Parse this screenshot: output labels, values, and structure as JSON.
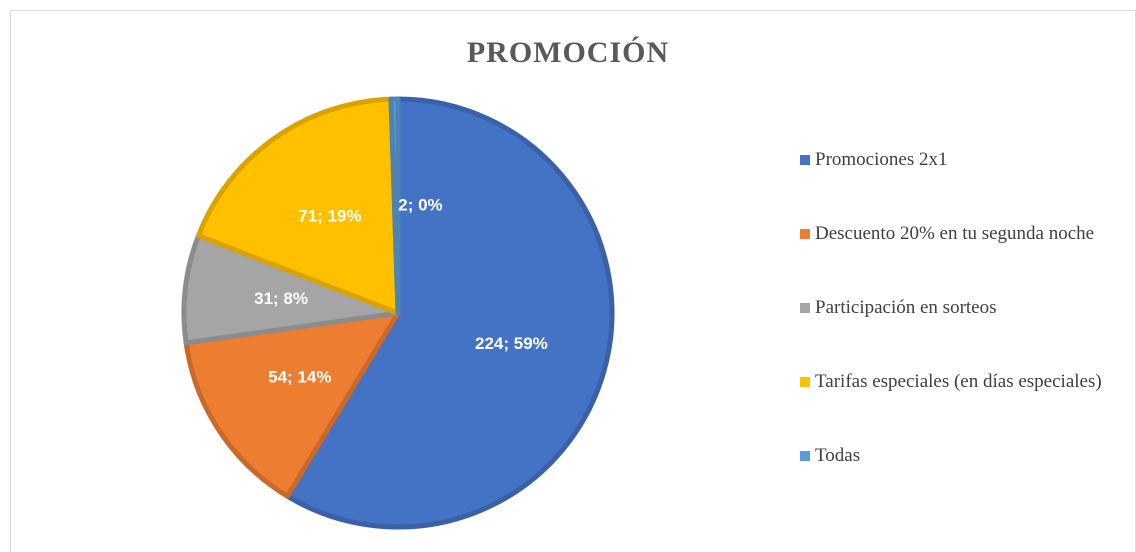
{
  "chart_data": {
    "type": "pie",
    "title": "PROMOCIÓN",
    "categories": [
      "Promociones 2x1",
      "Descuento 20% en tu segunda noche",
      "Participación en sorteos",
      "Tarifas especiales (en días especiales)",
      "Todas"
    ],
    "values": [
      224,
      54,
      31,
      71,
      2
    ],
    "value_labels": [
      "224; 59%",
      "54; 14%",
      "31; 8%",
      "71; 19%",
      "2; 0%"
    ],
    "colors": [
      "#4472c4",
      "#ed7d31",
      "#a5a5a5",
      "#ffc000",
      "#5b9bd5"
    ],
    "legend": "right"
  }
}
